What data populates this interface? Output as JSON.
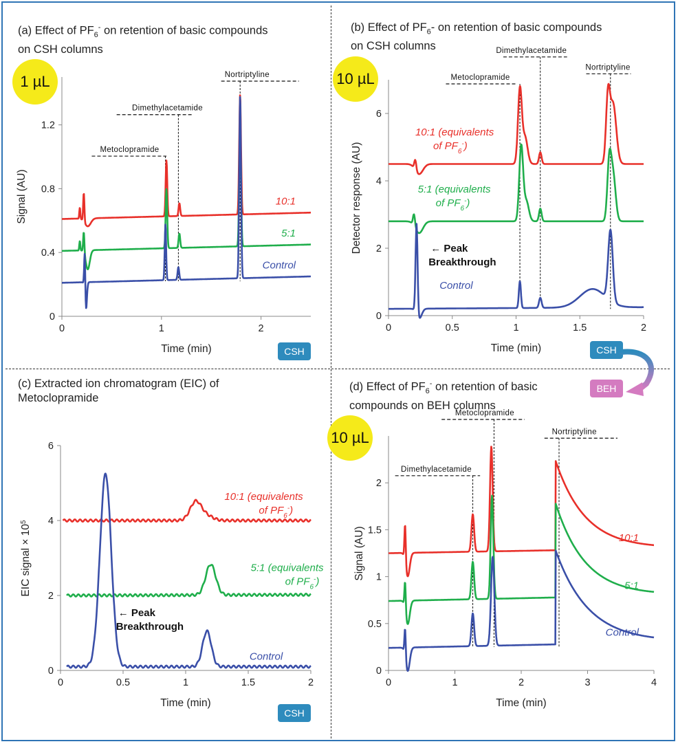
{
  "panels": {
    "a": {
      "title_line1": "(a) Effect of PF",
      "title_sub": "6",
      "title_sup": "-",
      "title_rest": " on retention of basic compounds",
      "title_line2": "on CSH columns",
      "badge": "1 µL",
      "tag": "CSH"
    },
    "b": {
      "title_line1": "(b) Effect of PF",
      "title_sub": "6",
      "title_rest": "- on retention of basic compounds",
      "title_line2": "on CSH columns",
      "badge": "10 µL",
      "tag": "CSH"
    },
    "c": {
      "title_line1": "(c) Extracted ion chromatogram (EIC) of",
      "title_line2": "Metoclopramide",
      "tag": "CSH"
    },
    "d": {
      "title_line1": "(d) Effect of PF",
      "title_sub": "6",
      "title_sup": "-",
      "title_rest": " on retention of basic",
      "title_line2": "compounds on BEH columns",
      "badge": "10 µL"
    },
    "beh_tag": "BEH"
  },
  "colors": {
    "red": "#e8302a",
    "green": "#1fae4b",
    "blue": "#3a4fa8",
    "frame": "#2e74b5"
  },
  "chart_data": [
    {
      "id": "a",
      "type": "line",
      "xlabel": "Time (min)",
      "ylabel": "Signal (AU)",
      "xlim": [
        0,
        2.5
      ],
      "ylim": [
        0,
        1.5
      ],
      "xticks": [
        0,
        1,
        2
      ],
      "xtick_labels": [
        "0",
        "1",
        "2"
      ],
      "yticks": [
        0,
        0.4,
        0.8,
        1.2
      ],
      "ytick_labels": [
        "0",
        "0.4",
        "0.8",
        "1.2"
      ],
      "grid": false,
      "series": [
        {
          "name": "10:1",
          "color": "red",
          "baseline": 0.61,
          "end": 0.65,
          "peaks": [
            [
              0.18,
              0.07,
              0.005
            ],
            [
              0.22,
              0.18,
              0.006
            ],
            [
              0.26,
              -0.05,
              0.03
            ],
            [
              1.05,
              0.35,
              0.008
            ],
            [
              1.18,
              0.08,
              0.008
            ],
            [
              1.79,
              0.75,
              0.009
            ]
          ]
        },
        {
          "name": "5:1",
          "color": "green",
          "baseline": 0.41,
          "end": 0.45,
          "peaks": [
            [
              0.18,
              0.06,
              0.005
            ],
            [
              0.22,
              0.13,
              0.006
            ],
            [
              0.26,
              -0.12,
              0.02
            ],
            [
              1.05,
              0.37,
              0.008
            ],
            [
              1.18,
              0.09,
              0.008
            ],
            [
              1.79,
              0.76,
              0.009
            ]
          ]
        },
        {
          "name": "Control",
          "color": "blue",
          "baseline": 0.21,
          "end": 0.25,
          "peaks": [
            [
              0.23,
              0.29,
              0.006
            ],
            [
              0.24,
              -0.2,
              0.01
            ],
            [
              1.04,
              0.35,
              0.007
            ],
            [
              1.17,
              0.08,
              0.008
            ],
            [
              1.79,
              1.14,
              0.009
            ]
          ]
        }
      ],
      "annotations": [
        {
          "text": "Metoclopramide",
          "x": 0.68,
          "y": 1.03,
          "line_x": [
            0.3,
            1.05
          ],
          "drop_x": 1.04,
          "drop_to": 0.22
        },
        {
          "text": "Dimethylacetamide",
          "x": 1.06,
          "y": 1.29,
          "line_x": [
            0.55,
            1.32
          ],
          "drop_x": 1.17,
          "drop_to": 0.22
        },
        {
          "text": "Nortriptyline",
          "x": 1.86,
          "y": 1.5,
          "line_x": [
            1.6,
            2.38
          ],
          "drop_x": 1.79,
          "drop_to": 0.22
        }
      ],
      "series_label_y": [
        0.7,
        0.5,
        0.3
      ]
    },
    {
      "id": "b",
      "type": "line",
      "xlabel": "Time (min)",
      "ylabel": "Detector response (AU)",
      "xlim": [
        0,
        2
      ],
      "ylim": [
        0,
        7
      ],
      "xticks": [
        0,
        0.5,
        1,
        1.5,
        2
      ],
      "xtick_labels": [
        "0",
        "0.5",
        "1",
        "1.5",
        "2"
      ],
      "yticks": [
        0,
        2,
        4,
        6
      ],
      "ytick_labels": [
        "0",
        "2",
        "4",
        "6"
      ],
      "grid": false,
      "series": [
        {
          "name": "10:1 (equivalents of PF6-)",
          "color": "red",
          "baseline": 4.5,
          "end": 4.5,
          "peaks": [
            [
              0.21,
              0.3,
              0.008
            ],
            [
              0.24,
              -0.3,
              0.03
            ],
            [
              1.03,
              2.2,
              0.015
            ],
            [
              1.07,
              0.8,
              0.02
            ],
            [
              1.19,
              0.35,
              0.01
            ],
            [
              1.72,
              1.8,
              0.015
            ],
            [
              1.76,
              1.8,
              0.025
            ]
          ]
        },
        {
          "name": "5:1 (equivalents of PF6-)",
          "color": "green",
          "baseline": 2.8,
          "end": 2.8,
          "peaks": [
            [
              0.2,
              0.35,
              0.008
            ],
            [
              0.24,
              -0.35,
              0.03
            ],
            [
              1.04,
              2.2,
              0.015
            ],
            [
              1.08,
              0.6,
              0.02
            ],
            [
              1.19,
              0.38,
              0.01
            ],
            [
              1.73,
              1.6,
              0.015
            ],
            [
              1.76,
              1.4,
              0.02
            ]
          ]
        },
        {
          "name": "Control",
          "color": "blue",
          "baseline": 0.2,
          "end": 0.25,
          "peaks": [
            [
              0.22,
              2.7,
              0.008
            ],
            [
              0.24,
              -0.3,
              0.02
            ],
            [
              1.03,
              0.8,
              0.008
            ],
            [
              1.19,
              0.3,
              0.01
            ],
            [
              1.6,
              0.55,
              0.1
            ],
            [
              1.74,
              2.1,
              0.018
            ]
          ]
        }
      ],
      "annotations": [
        {
          "text": "Metoclopramide",
          "x": 0.72,
          "y": 7.0,
          "line_x": [
            0.45,
            1.0
          ],
          "drop_x": 1.03,
          "drop_to": 0.8
        },
        {
          "text": "Dimethylacetamide",
          "x": 1.12,
          "y": 7.8,
          "line_x": [
            0.9,
            1.4
          ],
          "drop_x": 1.19,
          "drop_to": 0.5
        },
        {
          "text": "Nortriptyline",
          "x": 1.72,
          "y": 7.3,
          "line_x": [
            1.55,
            1.9
          ],
          "drop_x": 1.74,
          "drop_to": 0.2
        }
      ],
      "peak_breakthrough": {
        "x": 0.33,
        "y": 1.9,
        "arrow": "←",
        "line1": "Peak",
        "line2": "Breakthrough"
      },
      "series_labels": [
        {
          "line1": "10:1 (equivalents",
          "line2": "of PF",
          "sub": "6",
          "sup": "-",
          "close": ")",
          "x": 0.21,
          "y": 5.35
        },
        {
          "line1": "5:1 (equivalents",
          "line2": "of PF",
          "sub": "6",
          "sup": "-",
          "close": ")",
          "x": 0.23,
          "y": 3.65
        },
        {
          "line1": "Control",
          "x": 0.4,
          "y": 0.8
        }
      ]
    },
    {
      "id": "c",
      "type": "line",
      "xlabel": "Time (min)",
      "ylabel": "EIC signal × 10",
      "ylabel_sup": "5",
      "xlim": [
        0,
        2
      ],
      "ylim": [
        0,
        6
      ],
      "xticks": [
        0,
        0.5,
        1,
        1.5,
        2
      ],
      "xtick_labels": [
        "0",
        "0.5",
        "1",
        "1.5",
        "2"
      ],
      "yticks": [
        0,
        2,
        4,
        6
      ],
      "ytick_labels": [
        "0",
        "2",
        "4",
        "6"
      ],
      "grid": false,
      "series": [
        {
          "name": "10:1 (equivalents of PF6-)",
          "color": "red",
          "baseline": 4.0,
          "end": 4.0,
          "xstart": 0.02,
          "peaks": [
            [
              1.08,
              0.5,
              0.045
            ],
            [
              1.17,
              0.12,
              0.05
            ]
          ]
        },
        {
          "name": "5:1 (equivalents of PF6-)",
          "color": "green",
          "baseline": 2.0,
          "end": 2.02,
          "xstart": 0.05,
          "peaks": [
            [
              1.2,
              0.82,
              0.04
            ]
          ]
        },
        {
          "name": "Control",
          "color": "blue",
          "baseline": 0.1,
          "end": 0.1,
          "xstart": 0.05,
          "peaks": [
            [
              0.36,
              5.15,
              0.045
            ],
            [
              1.17,
              0.95,
              0.035
            ]
          ]
        }
      ],
      "peak_breakthrough": {
        "x": 0.46,
        "y": 1.45,
        "arrow": "←",
        "line1": "Peak",
        "line2": "Breakthrough"
      },
      "series_labels": [
        {
          "line1": "10:1 (equivalents",
          "line2": "of PF",
          "sub": "6",
          "sup": "-",
          "close": ")",
          "x": 1.31,
          "y": 4.55
        },
        {
          "line1": "5:1 (equivalents",
          "line2": "of PF",
          "sub": "6",
          "sup": "-",
          "close": ")",
          "x": 1.52,
          "y": 2.65
        },
        {
          "line1": "Control",
          "x": 1.51,
          "y": 0.28
        }
      ]
    },
    {
      "id": "d",
      "type": "line",
      "xlabel": "Time (min)",
      "ylabel": "Signal (AU)",
      "xlim": [
        0,
        4
      ],
      "ylim": [
        0,
        2.5
      ],
      "xticks": [
        0,
        1,
        2,
        3,
        4
      ],
      "xtick_labels": [
        "0",
        "1",
        "2",
        "3",
        "4"
      ],
      "yticks": [
        0,
        0.5,
        1,
        1.5,
        2
      ],
      "ytick_labels": [
        "0",
        "0.5",
        "1",
        "1.5",
        "2"
      ],
      "grid": false,
      "series": [
        {
          "name": "10:1",
          "color": "red",
          "baseline": 1.25,
          "end": 1.3,
          "peaks": [
            [
              0.25,
              0.4,
              0.01
            ],
            [
              0.29,
              -0.25,
              0.03
            ],
            [
              1.27,
              0.4,
              0.02
            ],
            [
              1.55,
              1.12,
              0.02
            ]
          ],
          "tailing": [
            2.52,
            0.95,
            0.45
          ]
        },
        {
          "name": "5:1",
          "color": "green",
          "baseline": 0.74,
          "end": 0.8,
          "peaks": [
            [
              0.25,
              0.3,
              0.01
            ],
            [
              0.29,
              -0.25,
              0.03
            ],
            [
              1.27,
              0.4,
              0.02
            ],
            [
              1.56,
              1.1,
              0.02
            ]
          ],
          "tailing": [
            2.52,
            1.0,
            0.45
          ]
        },
        {
          "name": "Control",
          "color": "blue",
          "baseline": 0.24,
          "end": 0.3,
          "peaks": [
            [
              0.25,
              0.3,
              0.01
            ],
            [
              0.29,
              -0.25,
              0.03
            ],
            [
              1.27,
              0.35,
              0.02
            ],
            [
              1.57,
              0.95,
              0.025
            ]
          ],
          "tailing": [
            2.52,
            1.0,
            0.5
          ]
        }
      ],
      "annotations": [
        {
          "text": "Metoclopramide",
          "x": 1.45,
          "y": 2.72,
          "line_x": [
            0.8,
            2.05
          ],
          "drop_x": 1.59,
          "drop_to": 0.25
        },
        {
          "text": "Dimethylacetamide",
          "x": 0.72,
          "y": 2.12,
          "line_x": [
            0.1,
            1.38
          ],
          "drop_x": 1.27,
          "drop_to": 0.25
        },
        {
          "text": "Nortriptyline",
          "x": 2.8,
          "y": 2.52,
          "line_x": [
            2.35,
            3.45
          ],
          "drop_x": 2.57,
          "drop_to": 0.25
        }
      ],
      "series_label_y": [
        1.38,
        0.87,
        0.37
      ]
    }
  ]
}
